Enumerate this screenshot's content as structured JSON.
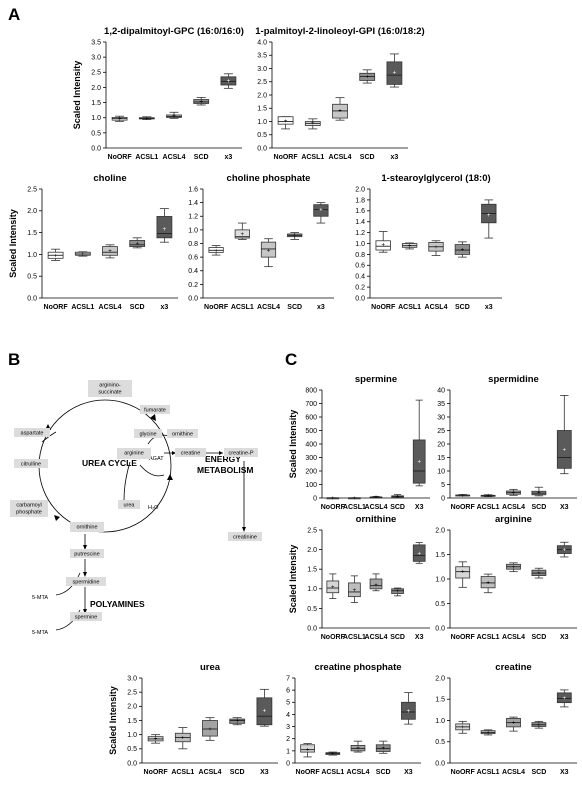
{
  "panel_letters": {
    "a": "A",
    "b": "B",
    "c": "C"
  },
  "colors": {
    "NoORF": "#ffffff",
    "ACSL1": "#dedede",
    "ACSL4": "#c6c6c6",
    "SCD": "#8e8e8e",
    "x3": "#5a5a5a"
  },
  "pathway": {
    "nodes": {
      "arginino_succinate": "arginino-\nsuccinate",
      "aspartate": "aspartate",
      "fumarate": "fumarate",
      "citrulline": "citrulline",
      "glycine": "glycine",
      "ornithine_top": "ornithine",
      "arginine": "arginine",
      "creatine": "creatine",
      "creatine_p": "creatine-P",
      "carbamoyl_phosphate": "carbamoyl\nphosphate",
      "ornithine": "ornithine",
      "urea": "urea",
      "creatinine": "creatinine",
      "putrescine": "putrescine",
      "spermidine": "spermidine",
      "spermine": "spermine"
    },
    "labels": {
      "urea_cycle": "UREA CYCLE",
      "energy": "ENERGY\nMETABOLISM",
      "polyamines": "POLYAMINES",
      "agat": "AGAT",
      "h2o": "H₂O",
      "mta1": "5-MTA",
      "mta2": "5-MTA"
    }
  },
  "chart_data": [
    {
      "id": "A1",
      "type": "box",
      "title": "1,2-dipalmitoyl-GPC (16:0/16:0)",
      "ylabel": "Scaled Intensity",
      "ylim": [
        0,
        3.5
      ],
      "yticks": [
        0,
        0.5,
        1,
        1.5,
        2,
        2.5,
        3,
        3.5
      ],
      "categories": [
        "NoORF",
        "ACSL1",
        "ACSL4",
        "SCD",
        "x3"
      ],
      "boxes": [
        {
          "min": 0.88,
          "q1": 0.92,
          "median": 0.97,
          "q3": 1.01,
          "max": 1.05,
          "mean": 0.97
        },
        {
          "min": 0.94,
          "q1": 0.96,
          "median": 0.98,
          "q3": 1.0,
          "max": 1.03,
          "mean": 0.98
        },
        {
          "min": 0.98,
          "q1": 1.01,
          "median": 1.04,
          "q3": 1.09,
          "max": 1.18,
          "mean": 1.05
        },
        {
          "min": 1.42,
          "q1": 1.47,
          "median": 1.52,
          "q3": 1.6,
          "max": 1.67,
          "mean": 1.53
        },
        {
          "min": 1.97,
          "q1": 2.08,
          "median": 2.2,
          "q3": 2.35,
          "max": 2.45,
          "mean": 2.22
        }
      ]
    },
    {
      "id": "A2",
      "type": "box",
      "title": "1-palmitoyl-2-linoleoyl-GPI (16:0/18:2)",
      "ylabel": "",
      "ylim": [
        0,
        4
      ],
      "yticks": [
        0,
        0.5,
        1,
        1.5,
        2,
        2.5,
        3,
        3.5,
        4
      ],
      "categories": [
        "NoORF",
        "ACSL1",
        "ACSL4",
        "SCD",
        "x3"
      ],
      "boxes": [
        {
          "min": 0.72,
          "q1": 0.9,
          "median": 1.0,
          "q3": 1.18,
          "max": 1.18,
          "mean": 1.02
        },
        {
          "min": 0.72,
          "q1": 0.85,
          "median": 0.93,
          "q3": 1.0,
          "max": 1.1,
          "mean": 0.94
        },
        {
          "min": 1.05,
          "q1": 1.13,
          "median": 1.4,
          "q3": 1.65,
          "max": 1.9,
          "mean": 1.42
        },
        {
          "min": 2.45,
          "q1": 2.55,
          "median": 2.7,
          "q3": 2.82,
          "max": 2.95,
          "mean": 2.7
        },
        {
          "min": 2.3,
          "q1": 2.4,
          "median": 2.75,
          "q3": 3.25,
          "max": 3.55,
          "mean": 2.85
        }
      ]
    },
    {
      "id": "A3",
      "type": "box",
      "title": "choline",
      "ylabel": "Scaled Intensity",
      "ylim": [
        0,
        2.5
      ],
      "yticks": [
        0,
        0.5,
        1,
        1.5,
        2,
        2.5
      ],
      "categories": [
        "NoORF",
        "ACSL1",
        "ACSL4",
        "SCD",
        "x3"
      ],
      "boxes": [
        {
          "min": 0.86,
          "q1": 0.91,
          "median": 0.98,
          "q3": 1.05,
          "max": 1.12,
          "mean": 0.98
        },
        {
          "min": 0.96,
          "q1": 0.98,
          "median": 1.01,
          "q3": 1.05,
          "max": 1.06,
          "mean": 1.01
        },
        {
          "min": 0.92,
          "q1": 0.98,
          "median": 1.05,
          "q3": 1.18,
          "max": 1.22,
          "mean": 1.08
        },
        {
          "min": 1.15,
          "q1": 1.18,
          "median": 1.22,
          "q3": 1.32,
          "max": 1.38,
          "mean": 1.25
        },
        {
          "min": 1.28,
          "q1": 1.38,
          "median": 1.48,
          "q3": 1.87,
          "max": 2.05,
          "mean": 1.58
        }
      ]
    },
    {
      "id": "A4",
      "type": "box",
      "title": "choline phosphate",
      "ylabel": "",
      "ylim": [
        0,
        1.6
      ],
      "yticks": [
        0,
        0.2,
        0.4,
        0.6,
        0.8,
        1,
        1.2,
        1.4,
        1.6
      ],
      "categories": [
        "NoORF",
        "ACSL1",
        "ACSL4",
        "SCD",
        "x3"
      ],
      "boxes": [
        {
          "min": 0.63,
          "q1": 0.67,
          "median": 0.7,
          "q3": 0.74,
          "max": 0.77,
          "mean": 0.7
        },
        {
          "min": 0.86,
          "q1": 0.88,
          "median": 0.9,
          "q3": 1.0,
          "max": 1.1,
          "mean": 0.94
        },
        {
          "min": 0.46,
          "q1": 0.6,
          "median": 0.72,
          "q3": 0.82,
          "max": 0.87,
          "mean": 0.7
        },
        {
          "min": 0.86,
          "q1": 0.9,
          "median": 0.92,
          "q3": 0.94,
          "max": 0.96,
          "mean": 0.92
        },
        {
          "min": 1.1,
          "q1": 1.2,
          "median": 1.3,
          "q3": 1.37,
          "max": 1.4,
          "mean": 1.3
        }
      ]
    },
    {
      "id": "A5",
      "type": "box",
      "title": "1-stearoylglycerol (18:0)",
      "ylabel": "",
      "ylim": [
        0,
        2
      ],
      "yticks": [
        0,
        0.2,
        0.4,
        0.6,
        0.8,
        1,
        1.2,
        1.4,
        1.6,
        1.8,
        2
      ],
      "categories": [
        "NoORF",
        "ACSL1",
        "ACSL4",
        "SCD",
        "x3"
      ],
      "boxes": [
        {
          "min": 0.84,
          "q1": 0.88,
          "median": 0.95,
          "q3": 1.05,
          "max": 1.22,
          "mean": 0.98
        },
        {
          "min": 0.9,
          "q1": 0.93,
          "median": 0.96,
          "q3": 1.0,
          "max": 1.01,
          "mean": 0.96
        },
        {
          "min": 0.78,
          "q1": 0.86,
          "median": 0.94,
          "q3": 1.02,
          "max": 1.05,
          "mean": 0.94
        },
        {
          "min": 0.75,
          "q1": 0.8,
          "median": 0.88,
          "q3": 0.98,
          "max": 1.03,
          "mean": 0.89
        },
        {
          "min": 1.1,
          "q1": 1.38,
          "median": 1.55,
          "q3": 1.72,
          "max": 1.8,
          "mean": 1.52
        }
      ]
    },
    {
      "id": "C1",
      "type": "box",
      "title": "spermine",
      "ylabel": "Scaled Intensity",
      "ylim": [
        0,
        800
      ],
      "yticks": [
        0,
        100,
        200,
        300,
        400,
        500,
        600,
        700,
        800
      ],
      "categories": [
        "NoORF",
        "ACSL1",
        "ACSL4",
        "SCD",
        "X3"
      ],
      "boxes": [
        {
          "min": 0.5,
          "q1": 0.8,
          "median": 1,
          "q3": 1.2,
          "max": 1.5,
          "mean": 1
        },
        {
          "min": 0.5,
          "q1": 0.8,
          "median": 1,
          "q3": 1.2,
          "max": 1.5,
          "mean": 1
        },
        {
          "min": 1,
          "q1": 3,
          "median": 5,
          "q3": 8,
          "max": 12,
          "mean": 6
        },
        {
          "min": 3,
          "q1": 7,
          "median": 10,
          "q3": 16,
          "max": 25,
          "mean": 12
        },
        {
          "min": 90,
          "q1": 110,
          "median": 200,
          "q3": 430,
          "max": 725,
          "mean": 270
        }
      ]
    },
    {
      "id": "C2",
      "type": "box",
      "title": "spermidine",
      "ylabel": "",
      "ylim": [
        0,
        40
      ],
      "yticks": [
        0,
        5,
        10,
        15,
        20,
        25,
        30,
        35,
        40
      ],
      "categories": [
        "NoORF",
        "ACSL1",
        "ACSL4",
        "SCD",
        "X3"
      ],
      "boxes": [
        {
          "min": 0.8,
          "q1": 0.9,
          "median": 1,
          "q3": 1.1,
          "max": 1.3,
          "mean": 1
        },
        {
          "min": 0.5,
          "q1": 0.7,
          "median": 0.8,
          "q3": 1,
          "max": 1.2,
          "mean": 0.85
        },
        {
          "min": 1,
          "q1": 1.4,
          "median": 2,
          "q3": 2.6,
          "max": 3.2,
          "mean": 2
        },
        {
          "min": 0.8,
          "q1": 1.2,
          "median": 1.8,
          "q3": 2.5,
          "max": 4,
          "mean": 2
        },
        {
          "min": 9,
          "q1": 11,
          "median": 15,
          "q3": 25,
          "max": 38,
          "mean": 18
        }
      ]
    },
    {
      "id": "C3",
      "type": "box",
      "title": "ornithine",
      "ylabel": "Scaled Intensity",
      "ylim": [
        0,
        2.5
      ],
      "yticks": [
        0,
        0.5,
        1,
        1.5,
        2,
        2.5
      ],
      "categories": [
        "NoORF",
        "ACSL1",
        "ACSL4",
        "SCD",
        "X3"
      ],
      "boxes": [
        {
          "min": 0.75,
          "q1": 0.9,
          "median": 1.02,
          "q3": 1.2,
          "max": 1.38,
          "mean": 1.05
        },
        {
          "min": 0.65,
          "q1": 0.8,
          "median": 0.92,
          "q3": 1.15,
          "max": 1.33,
          "mean": 0.97
        },
        {
          "min": 0.95,
          "q1": 1.0,
          "median": 1.08,
          "q3": 1.25,
          "max": 1.38,
          "mean": 1.1
        },
        {
          "min": 0.82,
          "q1": 0.88,
          "median": 0.95,
          "q3": 1.0,
          "max": 1.02,
          "mean": 0.94
        },
        {
          "min": 1.65,
          "q1": 1.7,
          "median": 1.85,
          "q3": 2.12,
          "max": 2.18,
          "mean": 1.9
        }
      ]
    },
    {
      "id": "C4",
      "type": "box",
      "title": "arginine",
      "ylabel": "",
      "ylim": [
        0,
        2
      ],
      "yticks": [
        0,
        0.5,
        1,
        1.5,
        2
      ],
      "categories": [
        "NoORF",
        "ACSL1",
        "ACSL4",
        "SCD",
        "X3"
      ],
      "boxes": [
        {
          "min": 0.83,
          "q1": 1.02,
          "median": 1.15,
          "q3": 1.25,
          "max": 1.35,
          "mean": 1.15
        },
        {
          "min": 0.72,
          "q1": 0.82,
          "median": 0.92,
          "q3": 1.05,
          "max": 1.1,
          "mean": 0.93
        },
        {
          "min": 1.15,
          "q1": 1.2,
          "median": 1.25,
          "q3": 1.3,
          "max": 1.33,
          "mean": 1.25
        },
        {
          "min": 1.02,
          "q1": 1.07,
          "median": 1.12,
          "q3": 1.18,
          "max": 1.22,
          "mean": 1.12
        },
        {
          "min": 1.45,
          "q1": 1.52,
          "median": 1.6,
          "q3": 1.68,
          "max": 1.75,
          "mean": 1.6
        }
      ]
    },
    {
      "id": "C5",
      "type": "box",
      "title": "urea",
      "ylabel": "Scaled Intensity",
      "ylim": [
        0,
        3
      ],
      "yticks": [
        0,
        0.5,
        1,
        1.5,
        2,
        2.5,
        3
      ],
      "categories": [
        "NoORF",
        "ACSL1",
        "ACSL4",
        "SCD",
        "X3"
      ],
      "boxes": [
        {
          "min": 0.7,
          "q1": 0.78,
          "median": 0.85,
          "q3": 0.93,
          "max": 1.0,
          "mean": 0.86
        },
        {
          "min": 0.5,
          "q1": 0.75,
          "median": 0.9,
          "q3": 1.05,
          "max": 1.25,
          "mean": 0.9
        },
        {
          "min": 0.8,
          "q1": 0.95,
          "median": 1.2,
          "q3": 1.5,
          "max": 1.6,
          "mean": 1.2
        },
        {
          "min": 1.35,
          "q1": 1.4,
          "median": 1.5,
          "q3": 1.55,
          "max": 1.6,
          "mean": 1.48
        },
        {
          "min": 1.3,
          "q1": 1.35,
          "median": 1.65,
          "q3": 2.3,
          "max": 2.6,
          "mean": 1.85
        }
      ]
    },
    {
      "id": "C6",
      "type": "box",
      "title": "creatine phosphate",
      "ylabel": "",
      "ylim": [
        0,
        7
      ],
      "yticks": [
        0,
        1,
        2,
        3,
        4,
        5,
        6,
        7
      ],
      "categories": [
        "NoORF",
        "ACSL1",
        "ACSL4",
        "SCD",
        "X3"
      ],
      "boxes": [
        {
          "min": 0.5,
          "q1": 0.9,
          "median": 1.1,
          "q3": 1.5,
          "max": 1.6,
          "mean": 1.1
        },
        {
          "min": 0.65,
          "q1": 0.7,
          "median": 0.78,
          "q3": 0.85,
          "max": 0.9,
          "mean": 0.78
        },
        {
          "min": 0.9,
          "q1": 1.0,
          "median": 1.2,
          "q3": 1.45,
          "max": 1.8,
          "mean": 1.25
        },
        {
          "min": 0.8,
          "q1": 0.95,
          "median": 1.2,
          "q3": 1.5,
          "max": 1.8,
          "mean": 1.25
        },
        {
          "min": 3.2,
          "q1": 3.6,
          "median": 4.2,
          "q3": 5.0,
          "max": 5.8,
          "mean": 4.3
        }
      ]
    },
    {
      "id": "C7",
      "type": "box",
      "title": "creatine",
      "ylabel": "",
      "ylim": [
        0,
        2
      ],
      "yticks": [
        0,
        0.5,
        1,
        1.5,
        2
      ],
      "categories": [
        "NoORF",
        "ACSL1",
        "ACSL4",
        "SCD",
        "X3"
      ],
      "boxes": [
        {
          "min": 0.7,
          "q1": 0.78,
          "median": 0.85,
          "q3": 0.92,
          "max": 0.98,
          "mean": 0.85
        },
        {
          "min": 0.66,
          "q1": 0.69,
          "median": 0.72,
          "q3": 0.76,
          "max": 0.78,
          "mean": 0.72
        },
        {
          "min": 0.75,
          "q1": 0.85,
          "median": 0.95,
          "q3": 1.05,
          "max": 1.08,
          "mean": 0.95
        },
        {
          "min": 0.82,
          "q1": 0.86,
          "median": 0.9,
          "q3": 0.95,
          "max": 0.98,
          "mean": 0.9
        },
        {
          "min": 1.32,
          "q1": 1.42,
          "median": 1.52,
          "q3": 1.65,
          "max": 1.72,
          "mean": 1.53
        }
      ]
    }
  ]
}
